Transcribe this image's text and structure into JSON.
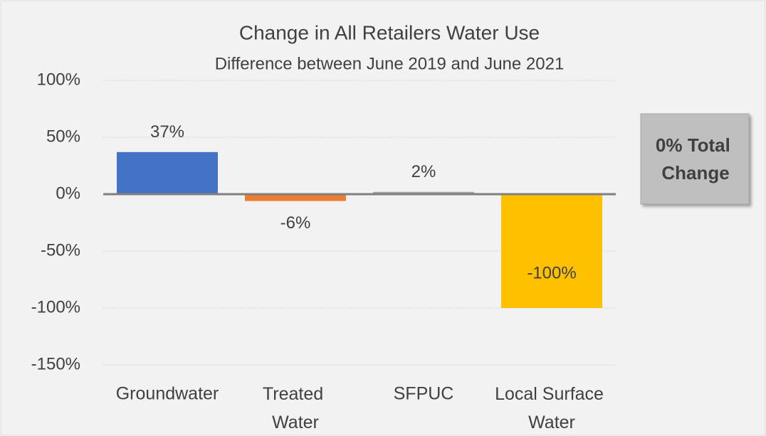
{
  "chart_data": {
    "type": "bar",
    "title": "Change in All Retailers Water Use",
    "subtitle": "Difference between June 2019 and June 2021",
    "categories": [
      "Groundwater",
      "Treated Water",
      "SFPUC",
      "Local Surface Water"
    ],
    "values": [
      37,
      -6,
      2,
      -100
    ],
    "value_labels": [
      "37%",
      "-6%",
      "2%",
      "-100%"
    ],
    "colors": [
      "#4472c4",
      "#ed7d31",
      "#a5a5a5",
      "#ffc000"
    ],
    "ylim": [
      -150,
      100
    ],
    "yticks": [
      {
        "value": -150,
        "label": "-150%"
      },
      {
        "value": -100,
        "label": "-100%"
      },
      {
        "value": -50,
        "label": "-50%"
      },
      {
        "value": 0,
        "label": "0%"
      },
      {
        "value": 50,
        "label": "50%"
      },
      {
        "value": 100,
        "label": "100%"
      }
    ],
    "grid": true,
    "annotation": "0% Total Change"
  }
}
